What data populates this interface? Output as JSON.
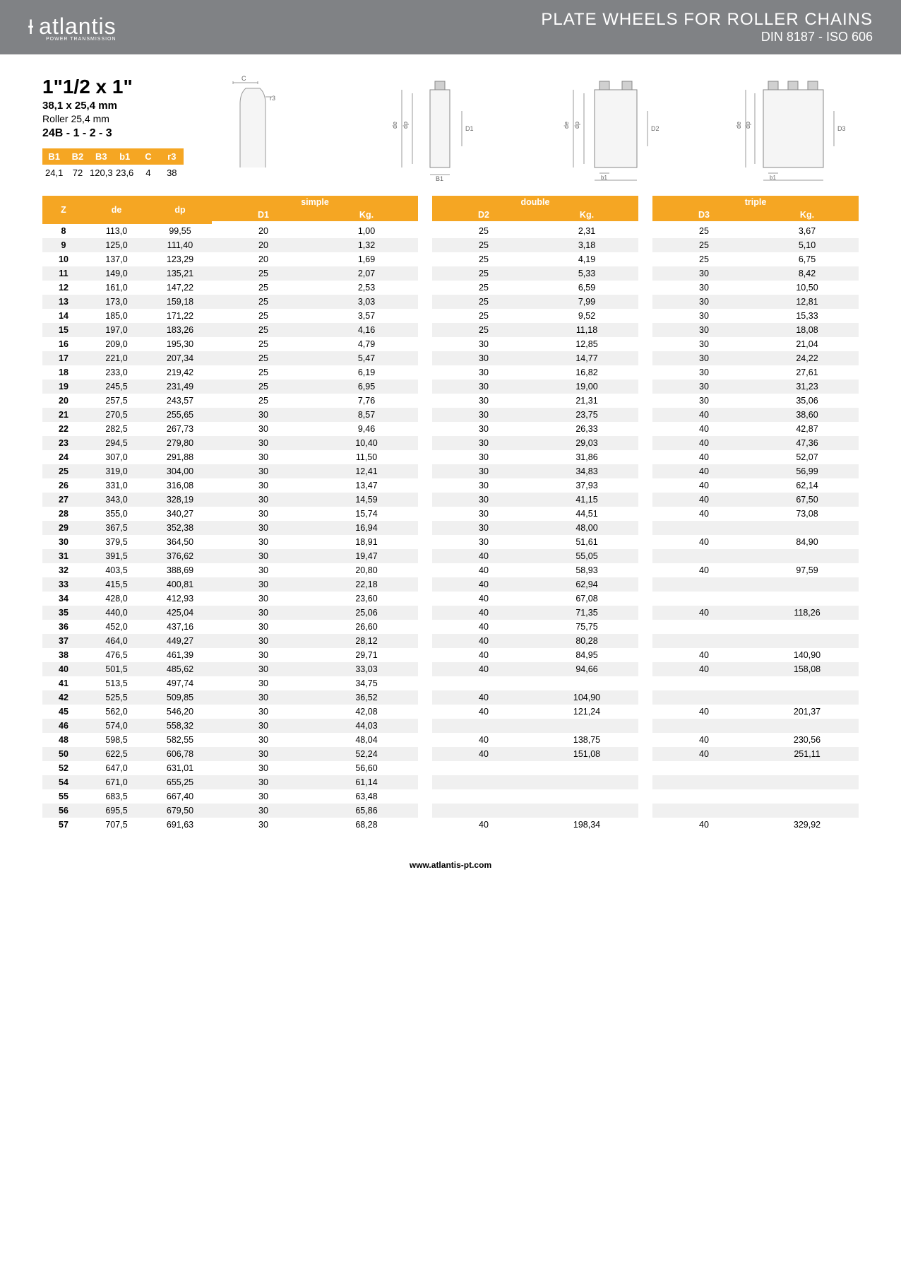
{
  "header": {
    "brand": "atlantis",
    "brand_sub": "POWER TRANSMISSION",
    "title": "PLATE WHEELS FOR ROLLER CHAINS",
    "subtitle": "DIN 8187 - ISO 606"
  },
  "spec": {
    "size": "1\"1/2 x 1\"",
    "mm": "38,1 x 25,4 mm",
    "roller": "Roller 25,4 mm",
    "code": "24B - 1 - 2 - 3"
  },
  "dims": {
    "headers": [
      "B1",
      "B2",
      "B3",
      "b1",
      "C",
      "r3"
    ],
    "values": [
      "24,1",
      "72",
      "120,3",
      "23,6",
      "4",
      "38"
    ]
  },
  "table": {
    "group_labels": [
      "simple",
      "double",
      "triple"
    ],
    "sub_labels": [
      [
        "D1",
        "Kg."
      ],
      [
        "D2",
        "Kg."
      ],
      [
        "D3",
        "Kg."
      ]
    ],
    "fixed_headers": [
      "Z",
      "de",
      "dp"
    ],
    "rows": [
      {
        "z": "8",
        "de": "113,0",
        "dp": "99,55",
        "s": [
          "20",
          "1,00"
        ],
        "d": [
          "25",
          "2,31"
        ],
        "t": [
          "25",
          "3,67"
        ]
      },
      {
        "z": "9",
        "de": "125,0",
        "dp": "111,40",
        "s": [
          "20",
          "1,32"
        ],
        "d": [
          "25",
          "3,18"
        ],
        "t": [
          "25",
          "5,10"
        ]
      },
      {
        "z": "10",
        "de": "137,0",
        "dp": "123,29",
        "s": [
          "20",
          "1,69"
        ],
        "d": [
          "25",
          "4,19"
        ],
        "t": [
          "25",
          "6,75"
        ]
      },
      {
        "z": "11",
        "de": "149,0",
        "dp": "135,21",
        "s": [
          "25",
          "2,07"
        ],
        "d": [
          "25",
          "5,33"
        ],
        "t": [
          "30",
          "8,42"
        ]
      },
      {
        "z": "12",
        "de": "161,0",
        "dp": "147,22",
        "s": [
          "25",
          "2,53"
        ],
        "d": [
          "25",
          "6,59"
        ],
        "t": [
          "30",
          "10,50"
        ]
      },
      {
        "z": "13",
        "de": "173,0",
        "dp": "159,18",
        "s": [
          "25",
          "3,03"
        ],
        "d": [
          "25",
          "7,99"
        ],
        "t": [
          "30",
          "12,81"
        ]
      },
      {
        "z": "14",
        "de": "185,0",
        "dp": "171,22",
        "s": [
          "25",
          "3,57"
        ],
        "d": [
          "25",
          "9,52"
        ],
        "t": [
          "30",
          "15,33"
        ]
      },
      {
        "z": "15",
        "de": "197,0",
        "dp": "183,26",
        "s": [
          "25",
          "4,16"
        ],
        "d": [
          "25",
          "11,18"
        ],
        "t": [
          "30",
          "18,08"
        ]
      },
      {
        "z": "16",
        "de": "209,0",
        "dp": "195,30",
        "s": [
          "25",
          "4,79"
        ],
        "d": [
          "30",
          "12,85"
        ],
        "t": [
          "30",
          "21,04"
        ]
      },
      {
        "z": "17",
        "de": "221,0",
        "dp": "207,34",
        "s": [
          "25",
          "5,47"
        ],
        "d": [
          "30",
          "14,77"
        ],
        "t": [
          "30",
          "24,22"
        ]
      },
      {
        "z": "18",
        "de": "233,0",
        "dp": "219,42",
        "s": [
          "25",
          "6,19"
        ],
        "d": [
          "30",
          "16,82"
        ],
        "t": [
          "30",
          "27,61"
        ]
      },
      {
        "z": "19",
        "de": "245,5",
        "dp": "231,49",
        "s": [
          "25",
          "6,95"
        ],
        "d": [
          "30",
          "19,00"
        ],
        "t": [
          "30",
          "31,23"
        ]
      },
      {
        "z": "20",
        "de": "257,5",
        "dp": "243,57",
        "s": [
          "25",
          "7,76"
        ],
        "d": [
          "30",
          "21,31"
        ],
        "t": [
          "30",
          "35,06"
        ]
      },
      {
        "z": "21",
        "de": "270,5",
        "dp": "255,65",
        "s": [
          "30",
          "8,57"
        ],
        "d": [
          "30",
          "23,75"
        ],
        "t": [
          "40",
          "38,60"
        ]
      },
      {
        "z": "22",
        "de": "282,5",
        "dp": "267,73",
        "s": [
          "30",
          "9,46"
        ],
        "d": [
          "30",
          "26,33"
        ],
        "t": [
          "40",
          "42,87"
        ]
      },
      {
        "z": "23",
        "de": "294,5",
        "dp": "279,80",
        "s": [
          "30",
          "10,40"
        ],
        "d": [
          "30",
          "29,03"
        ],
        "t": [
          "40",
          "47,36"
        ]
      },
      {
        "z": "24",
        "de": "307,0",
        "dp": "291,88",
        "s": [
          "30",
          "11,50"
        ],
        "d": [
          "30",
          "31,86"
        ],
        "t": [
          "40",
          "52,07"
        ]
      },
      {
        "z": "25",
        "de": "319,0",
        "dp": "304,00",
        "s": [
          "30",
          "12,41"
        ],
        "d": [
          "30",
          "34,83"
        ],
        "t": [
          "40",
          "56,99"
        ]
      },
      {
        "z": "26",
        "de": "331,0",
        "dp": "316,08",
        "s": [
          "30",
          "13,47"
        ],
        "d": [
          "30",
          "37,93"
        ],
        "t": [
          "40",
          "62,14"
        ]
      },
      {
        "z": "27",
        "de": "343,0",
        "dp": "328,19",
        "s": [
          "30",
          "14,59"
        ],
        "d": [
          "30",
          "41,15"
        ],
        "t": [
          "40",
          "67,50"
        ]
      },
      {
        "z": "28",
        "de": "355,0",
        "dp": "340,27",
        "s": [
          "30",
          "15,74"
        ],
        "d": [
          "30",
          "44,51"
        ],
        "t": [
          "40",
          "73,08"
        ]
      },
      {
        "z": "29",
        "de": "367,5",
        "dp": "352,38",
        "s": [
          "30",
          "16,94"
        ],
        "d": [
          "30",
          "48,00"
        ],
        "t": [
          "",
          ""
        ]
      },
      {
        "z": "30",
        "de": "379,5",
        "dp": "364,50",
        "s": [
          "30",
          "18,91"
        ],
        "d": [
          "30",
          "51,61"
        ],
        "t": [
          "40",
          "84,90"
        ]
      },
      {
        "z": "31",
        "de": "391,5",
        "dp": "376,62",
        "s": [
          "30",
          "19,47"
        ],
        "d": [
          "40",
          "55,05"
        ],
        "t": [
          "",
          ""
        ]
      },
      {
        "z": "32",
        "de": "403,5",
        "dp": "388,69",
        "s": [
          "30",
          "20,80"
        ],
        "d": [
          "40",
          "58,93"
        ],
        "t": [
          "40",
          "97,59"
        ]
      },
      {
        "z": "33",
        "de": "415,5",
        "dp": "400,81",
        "s": [
          "30",
          "22,18"
        ],
        "d": [
          "40",
          "62,94"
        ],
        "t": [
          "",
          ""
        ]
      },
      {
        "z": "34",
        "de": "428,0",
        "dp": "412,93",
        "s": [
          "30",
          "23,60"
        ],
        "d": [
          "40",
          "67,08"
        ],
        "t": [
          "",
          ""
        ]
      },
      {
        "z": "35",
        "de": "440,0",
        "dp": "425,04",
        "s": [
          "30",
          "25,06"
        ],
        "d": [
          "40",
          "71,35"
        ],
        "t": [
          "40",
          "118,26"
        ]
      },
      {
        "z": "36",
        "de": "452,0",
        "dp": "437,16",
        "s": [
          "30",
          "26,60"
        ],
        "d": [
          "40",
          "75,75"
        ],
        "t": [
          "",
          ""
        ]
      },
      {
        "z": "37",
        "de": "464,0",
        "dp": "449,27",
        "s": [
          "30",
          "28,12"
        ],
        "d": [
          "40",
          "80,28"
        ],
        "t": [
          "",
          ""
        ]
      },
      {
        "z": "38",
        "de": "476,5",
        "dp": "461,39",
        "s": [
          "30",
          "29,71"
        ],
        "d": [
          "40",
          "84,95"
        ],
        "t": [
          "40",
          "140,90"
        ]
      },
      {
        "z": "40",
        "de": "501,5",
        "dp": "485,62",
        "s": [
          "30",
          "33,03"
        ],
        "d": [
          "40",
          "94,66"
        ],
        "t": [
          "40",
          "158,08"
        ]
      },
      {
        "z": "41",
        "de": "513,5",
        "dp": "497,74",
        "s": [
          "30",
          "34,75"
        ],
        "d": [
          "",
          ""
        ],
        "t": [
          "",
          ""
        ]
      },
      {
        "z": "42",
        "de": "525,5",
        "dp": "509,85",
        "s": [
          "30",
          "36,52"
        ],
        "d": [
          "40",
          "104,90"
        ],
        "t": [
          "",
          ""
        ]
      },
      {
        "z": "45",
        "de": "562,0",
        "dp": "546,20",
        "s": [
          "30",
          "42,08"
        ],
        "d": [
          "40",
          "121,24"
        ],
        "t": [
          "40",
          "201,37"
        ]
      },
      {
        "z": "46",
        "de": "574,0",
        "dp": "558,32",
        "s": [
          "30",
          "44,03"
        ],
        "d": [
          "",
          ""
        ],
        "t": [
          "",
          ""
        ]
      },
      {
        "z": "48",
        "de": "598,5",
        "dp": "582,55",
        "s": [
          "30",
          "48,04"
        ],
        "d": [
          "40",
          "138,75"
        ],
        "t": [
          "40",
          "230,56"
        ]
      },
      {
        "z": "50",
        "de": "622,5",
        "dp": "606,78",
        "s": [
          "30",
          "52,24"
        ],
        "d": [
          "40",
          "151,08"
        ],
        "t": [
          "40",
          "251,11"
        ]
      },
      {
        "z": "52",
        "de": "647,0",
        "dp": "631,01",
        "s": [
          "30",
          "56,60"
        ],
        "d": [
          "",
          ""
        ],
        "t": [
          "",
          ""
        ]
      },
      {
        "z": "54",
        "de": "671,0",
        "dp": "655,25",
        "s": [
          "30",
          "61,14"
        ],
        "d": [
          "",
          ""
        ],
        "t": [
          "",
          ""
        ]
      },
      {
        "z": "55",
        "de": "683,5",
        "dp": "667,40",
        "s": [
          "30",
          "63,48"
        ],
        "d": [
          "",
          ""
        ],
        "t": [
          "",
          ""
        ]
      },
      {
        "z": "56",
        "de": "695,5",
        "dp": "679,50",
        "s": [
          "30",
          "65,86"
        ],
        "d": [
          "",
          ""
        ],
        "t": [
          "",
          ""
        ]
      },
      {
        "z": "57",
        "de": "707,5",
        "dp": "691,63",
        "s": [
          "30",
          "68,28"
        ],
        "d": [
          "40",
          "198,34"
        ],
        "t": [
          "40",
          "329,92"
        ]
      }
    ]
  },
  "footer": "www.atlantis-pt.com",
  "colors": {
    "accent": "#f5a623",
    "header_bg": "#808285",
    "row_alt": "#f0f0f0"
  }
}
